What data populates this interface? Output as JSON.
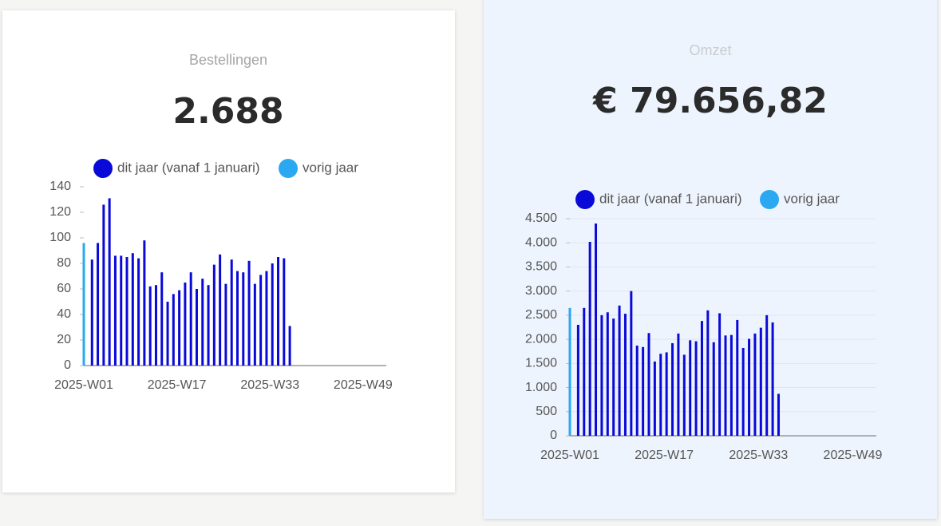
{
  "chart_data": [
    {
      "type": "bar",
      "title": "Bestellingen",
      "kpi": "2.688",
      "categories": [
        "2025-W01",
        null,
        null,
        null,
        null,
        null,
        null,
        null,
        null,
        null,
        null,
        null,
        null,
        null,
        null,
        null,
        "2025-W17",
        null,
        null,
        null,
        null,
        null,
        null,
        null,
        null,
        null,
        null,
        null,
        null,
        null,
        null,
        null,
        "2025-W33",
        null,
        null,
        null,
        null,
        null,
        null,
        null,
        null,
        null,
        null,
        null,
        null,
        null,
        null,
        null,
        "2025-W49",
        null,
        null,
        null,
        null
      ],
      "series": [
        {
          "name": "dit jaar (vanaf 1 januari)",
          "color": "#0a0ad8",
          "values": [
            null,
            83,
            96,
            126,
            131,
            86,
            86,
            85,
            88,
            84,
            98,
            62,
            63,
            73,
            50,
            56,
            59,
            65,
            73,
            60,
            68,
            63,
            79,
            87,
            64,
            83,
            74,
            73,
            82,
            64,
            71,
            74,
            80,
            85,
            84,
            31,
            null,
            null,
            null,
            null,
            null,
            null,
            null,
            null,
            null,
            null,
            null,
            null,
            null,
            null,
            null,
            null,
            null
          ]
        },
        {
          "name": "vorig jaar",
          "color": "#2aa8f2",
          "values": [
            96,
            null,
            null,
            null,
            null,
            null,
            null,
            null,
            null,
            null,
            null,
            null,
            null,
            null,
            null,
            null,
            null,
            null,
            null,
            null,
            null,
            null,
            null,
            null,
            null,
            null,
            null,
            null,
            null,
            null,
            null,
            null,
            null,
            null,
            null,
            null,
            null,
            null,
            null,
            null,
            null,
            null,
            null,
            null,
            null,
            null,
            null,
            null,
            null,
            null,
            null,
            null,
            null
          ]
        }
      ],
      "ylim": [
        0,
        140
      ],
      "yticks": [
        0,
        20,
        40,
        60,
        80,
        100,
        120,
        140
      ],
      "grid": false
    },
    {
      "type": "bar",
      "title": "Omzet",
      "kpi": "€ 79.656,82",
      "categories": [
        "2025-W01",
        null,
        null,
        null,
        null,
        null,
        null,
        null,
        null,
        null,
        null,
        null,
        null,
        null,
        null,
        null,
        "2025-W17",
        null,
        null,
        null,
        null,
        null,
        null,
        null,
        null,
        null,
        null,
        null,
        null,
        null,
        null,
        null,
        "2025-W33",
        null,
        null,
        null,
        null,
        null,
        null,
        null,
        null,
        null,
        null,
        null,
        null,
        null,
        null,
        null,
        "2025-W49",
        null,
        null,
        null,
        null
      ],
      "series": [
        {
          "name": "dit jaar (vanaf 1 januari)",
          "color": "#0a0ad8",
          "values": [
            null,
            2300,
            2650,
            4020,
            4400,
            2500,
            2560,
            2430,
            2700,
            2530,
            3000,
            1870,
            1840,
            2130,
            1540,
            1700,
            1730,
            1920,
            2120,
            1680,
            1980,
            1960,
            2380,
            2600,
            1940,
            2540,
            2080,
            2090,
            2400,
            1820,
            2010,
            2120,
            2240,
            2500,
            2350,
            870,
            null,
            null,
            null,
            null,
            null,
            null,
            null,
            null,
            null,
            null,
            null,
            null,
            null,
            null,
            null,
            null,
            null
          ]
        },
        {
          "name": "vorig jaar",
          "color": "#2aa8f2",
          "values": [
            2650,
            null,
            null,
            null,
            null,
            null,
            null,
            null,
            null,
            null,
            null,
            null,
            null,
            null,
            null,
            null,
            null,
            null,
            null,
            null,
            null,
            null,
            null,
            null,
            null,
            null,
            null,
            null,
            null,
            null,
            null,
            null,
            null,
            null,
            null,
            null,
            null,
            null,
            null,
            null,
            null,
            null,
            null,
            null,
            null,
            null,
            null,
            null,
            null,
            null,
            null,
            null,
            null
          ]
        }
      ],
      "ylim": [
        0,
        4500
      ],
      "yticks": [
        0,
        500,
        {
          "value": 1000,
          "label": "1.000"
        },
        {
          "value": 1500,
          "label": "1.500"
        },
        {
          "value": 2000,
          "label": "2.000"
        },
        {
          "value": 2500,
          "label": "2.500"
        },
        {
          "value": 3000,
          "label": "3.000"
        },
        {
          "value": 3500,
          "label": "3.500"
        },
        {
          "value": 4000,
          "label": "4.000"
        },
        {
          "value": 4500,
          "label": "4.500"
        }
      ],
      "grid": true
    }
  ]
}
